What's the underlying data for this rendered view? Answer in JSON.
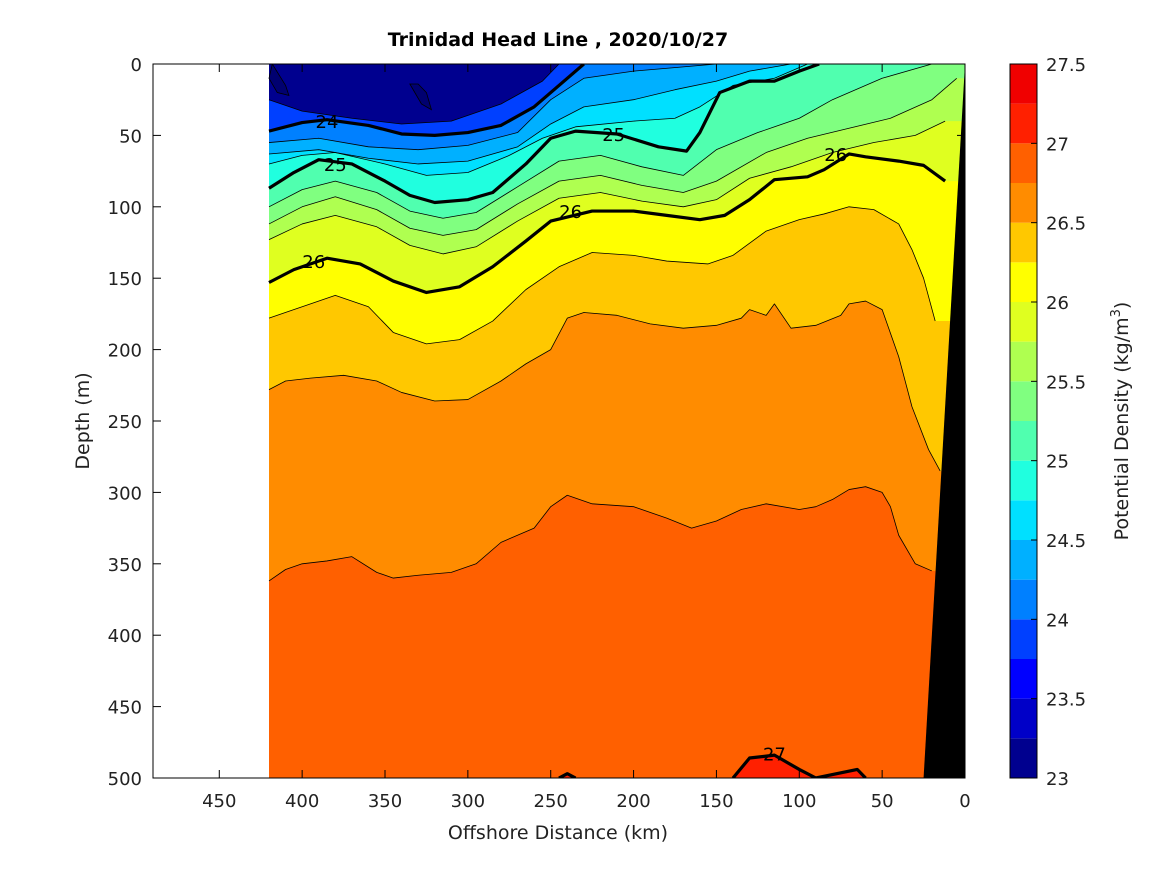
{
  "chart_data": {
    "type": "heatmap",
    "title": "Trinidad Head Line , 2020/10/27",
    "xlabel": "Offshore Distance (km)",
    "ylabel": "Depth (m)",
    "colorbar_label_prefix": "Potential Density (kg/m",
    "colorbar_label_exponent": "3",
    "colorbar_label_suffix": ")",
    "xlim": [
      490,
      0
    ],
    "ylim": [
      500,
      0
    ],
    "x_reversed": true,
    "y_reversed": true,
    "x_ticks": [
      450,
      400,
      350,
      300,
      250,
      200,
      150,
      100,
      50,
      0
    ],
    "x_tick_labels": [
      "450",
      "400",
      "350",
      "300",
      "250",
      "200",
      "150",
      "100",
      "50",
      "0"
    ],
    "y_ticks": [
      0,
      50,
      100,
      150,
      200,
      250,
      300,
      350,
      400,
      450,
      500
    ],
    "y_tick_labels": [
      "0",
      "50",
      "100",
      "150",
      "200",
      "250",
      "300",
      "350",
      "400",
      "450",
      "500"
    ],
    "data_extent_km": [
      420,
      0
    ],
    "color_range": [
      23,
      27.5
    ],
    "color_levels": [
      23,
      23.25,
      23.5,
      23.75,
      24,
      24.25,
      24.5,
      24.75,
      25,
      25.25,
      25.5,
      25.75,
      26,
      26.25,
      26.5,
      26.75,
      27,
      27.25,
      27.5
    ],
    "colorbar_ticks": [
      23,
      23.5,
      24,
      24.5,
      25,
      25.5,
      26,
      26.5,
      27,
      27.5
    ],
    "colorbar_tick_labels": [
      "23",
      "23.5",
      "24",
      "24.5",
      "25",
      "25.5",
      "26",
      "26.5",
      "27",
      "27.5"
    ],
    "colors": [
      "#00008f",
      "#0000c8",
      "#0000ff",
      "#0040ff",
      "#0080ff",
      "#00b0ff",
      "#00e0ff",
      "#20ffdf",
      "#50ffaf",
      "#80ff80",
      "#afff50",
      "#dfff20",
      "#ffff00",
      "#ffc800",
      "#ff8c00",
      "#ff6000",
      "#ff2000",
      "#f00000",
      "#b00000"
    ],
    "bathymetry_color": "#000000",
    "bathymetry": [
      [
        0,
        0
      ],
      [
        25,
        500
      ]
    ],
    "isopycnals": [
      {
        "level": 23.75,
        "points": [
          [
            420,
            25
          ],
          [
            400,
            33
          ],
          [
            370,
            38
          ],
          [
            340,
            42
          ],
          [
            310,
            40
          ],
          [
            280,
            28
          ],
          [
            255,
            12
          ],
          [
            245,
            0
          ]
        ]
      },
      {
        "level": 24,
        "bold": true,
        "label": "24",
        "points": [
          [
            420,
            47
          ],
          [
            400,
            41
          ],
          [
            385,
            39
          ],
          [
            360,
            43
          ],
          [
            340,
            49
          ],
          [
            320,
            50
          ],
          [
            300,
            48
          ],
          [
            280,
            43
          ],
          [
            260,
            30
          ],
          [
            240,
            10
          ],
          [
            230,
            0
          ]
        ]
      },
      {
        "level": 24.25,
        "points": [
          [
            420,
            55
          ],
          [
            390,
            52
          ],
          [
            360,
            58
          ],
          [
            330,
            60
          ],
          [
            300,
            57
          ],
          [
            270,
            48
          ],
          [
            250,
            25
          ],
          [
            230,
            10
          ],
          [
            200,
            5
          ],
          [
            170,
            2
          ],
          [
            150,
            0
          ]
        ]
      },
      {
        "level": 24.5,
        "points": [
          [
            420,
            63
          ],
          [
            390,
            60
          ],
          [
            360,
            66
          ],
          [
            330,
            70
          ],
          [
            300,
            68
          ],
          [
            270,
            58
          ],
          [
            250,
            42
          ],
          [
            230,
            30
          ],
          [
            200,
            25
          ],
          [
            175,
            18
          ],
          [
            150,
            12
          ],
          [
            130,
            5
          ],
          [
            105,
            0
          ]
        ]
      },
      {
        "level": 24.75,
        "points": [
          [
            420,
            70
          ],
          [
            400,
            64
          ],
          [
            380,
            62
          ],
          [
            350,
            70
          ],
          [
            325,
            78
          ],
          [
            300,
            76
          ],
          [
            275,
            64
          ],
          [
            255,
            52
          ],
          [
            235,
            44
          ],
          [
            200,
            40
          ],
          [
            175,
            38
          ],
          [
            160,
            30
          ],
          [
            140,
            15
          ],
          [
            115,
            10
          ],
          [
            95,
            0
          ]
        ]
      },
      {
        "level": 25,
        "bold": true,
        "label": "25",
        "points": [
          [
            420,
            87
          ],
          [
            405,
            76
          ],
          [
            390,
            67
          ],
          [
            370,
            70
          ],
          [
            350,
            82
          ],
          [
            335,
            92
          ],
          [
            320,
            97
          ],
          [
            300,
            95
          ],
          [
            285,
            90
          ],
          [
            265,
            70
          ],
          [
            250,
            52
          ],
          [
            235,
            47
          ],
          [
            210,
            49
          ],
          [
            185,
            58
          ],
          [
            168,
            61
          ],
          [
            160,
            48
          ],
          [
            148,
            20
          ],
          [
            130,
            12
          ],
          [
            115,
            12
          ],
          [
            100,
            5
          ],
          [
            88,
            0
          ]
        ]
      },
      {
        "level": 25.25,
        "points": [
          [
            420,
            100
          ],
          [
            400,
            88
          ],
          [
            380,
            82
          ],
          [
            355,
            90
          ],
          [
            335,
            103
          ],
          [
            315,
            108
          ],
          [
            295,
            104
          ],
          [
            270,
            86
          ],
          [
            245,
            68
          ],
          [
            220,
            64
          ],
          [
            195,
            72
          ],
          [
            170,
            78
          ],
          [
            150,
            60
          ],
          [
            125,
            48
          ],
          [
            100,
            38
          ],
          [
            80,
            25
          ],
          [
            50,
            10
          ],
          [
            20,
            0
          ]
        ]
      },
      {
        "level": 25.5,
        "points": [
          [
            420,
            112
          ],
          [
            400,
            100
          ],
          [
            380,
            93
          ],
          [
            355,
            102
          ],
          [
            335,
            115
          ],
          [
            315,
            120
          ],
          [
            295,
            116
          ],
          [
            270,
            98
          ],
          [
            245,
            82
          ],
          [
            220,
            78
          ],
          [
            195,
            85
          ],
          [
            170,
            90
          ],
          [
            150,
            82
          ],
          [
            120,
            62
          ],
          [
            95,
            52
          ],
          [
            70,
            45
          ],
          [
            45,
            38
          ],
          [
            20,
            25
          ],
          [
            5,
            10
          ]
        ]
      },
      {
        "level": 25.75,
        "points": [
          [
            420,
            123
          ],
          [
            400,
            112
          ],
          [
            380,
            106
          ],
          [
            355,
            114
          ],
          [
            335,
            127
          ],
          [
            315,
            133
          ],
          [
            295,
            128
          ],
          [
            270,
            110
          ],
          [
            245,
            94
          ],
          [
            220,
            90
          ],
          [
            195,
            96
          ],
          [
            170,
            100
          ],
          [
            150,
            95
          ],
          [
            130,
            80
          ],
          [
            105,
            72
          ],
          [
            80,
            62
          ],
          [
            55,
            55
          ],
          [
            30,
            50
          ],
          [
            12,
            40
          ]
        ]
      },
      {
        "level": 26,
        "bold": true,
        "label": "26",
        "points": [
          [
            420,
            153
          ],
          [
            405,
            144
          ],
          [
            385,
            136
          ],
          [
            365,
            140
          ],
          [
            345,
            152
          ],
          [
            325,
            160
          ],
          [
            305,
            156
          ],
          [
            285,
            142
          ],
          [
            265,
            124
          ],
          [
            250,
            110
          ],
          [
            225,
            103
          ],
          [
            200,
            103
          ],
          [
            180,
            106
          ],
          [
            160,
            109
          ],
          [
            145,
            106
          ],
          [
            130,
            95
          ],
          [
            115,
            81
          ],
          [
            95,
            79
          ],
          [
            85,
            74
          ],
          [
            70,
            63
          ],
          [
            60,
            65
          ],
          [
            40,
            68
          ],
          [
            25,
            71
          ],
          [
            12,
            82
          ]
        ]
      },
      {
        "level": 26.25,
        "points": [
          [
            420,
            178
          ],
          [
            400,
            170
          ],
          [
            380,
            162
          ],
          [
            360,
            170
          ],
          [
            345,
            188
          ],
          [
            325,
            196
          ],
          [
            305,
            193
          ],
          [
            285,
            180
          ],
          [
            265,
            158
          ],
          [
            245,
            142
          ],
          [
            225,
            132
          ],
          [
            200,
            134
          ],
          [
            180,
            138
          ],
          [
            155,
            140
          ],
          [
            140,
            134
          ],
          [
            120,
            117
          ],
          [
            100,
            109
          ],
          [
            85,
            105
          ],
          [
            70,
            100
          ],
          [
            55,
            102
          ],
          [
            40,
            112
          ],
          [
            32,
            130
          ],
          [
            25,
            150
          ],
          [
            18,
            180
          ]
        ]
      },
      {
        "level": 26.5,
        "points": [
          [
            420,
            228
          ],
          [
            410,
            222
          ],
          [
            395,
            220
          ],
          [
            375,
            218
          ],
          [
            355,
            222
          ],
          [
            340,
            230
          ],
          [
            320,
            236
          ],
          [
            300,
            235
          ],
          [
            280,
            222
          ],
          [
            265,
            210
          ],
          [
            250,
            200
          ],
          [
            240,
            178
          ],
          [
            230,
            174
          ],
          [
            210,
            176
          ],
          [
            190,
            182
          ],
          [
            170,
            185
          ],
          [
            150,
            183
          ],
          [
            135,
            178
          ],
          [
            130,
            172
          ],
          [
            120,
            176
          ],
          [
            115,
            168
          ],
          [
            105,
            185
          ],
          [
            90,
            183
          ],
          [
            75,
            176
          ],
          [
            70,
            168
          ],
          [
            60,
            166
          ],
          [
            50,
            172
          ],
          [
            40,
            205
          ],
          [
            32,
            240
          ],
          [
            22,
            270
          ],
          [
            15,
            285
          ]
        ]
      },
      {
        "level": 26.75,
        "points": [
          [
            420,
            362
          ],
          [
            410,
            354
          ],
          [
            400,
            350
          ],
          [
            385,
            348
          ],
          [
            370,
            345
          ],
          [
            355,
            356
          ],
          [
            345,
            360
          ],
          [
            330,
            358
          ],
          [
            310,
            356
          ],
          [
            295,
            350
          ],
          [
            280,
            335
          ],
          [
            260,
            325
          ],
          [
            250,
            310
          ],
          [
            240,
            302
          ],
          [
            225,
            308
          ],
          [
            200,
            310
          ],
          [
            180,
            318
          ],
          [
            165,
            325
          ],
          [
            150,
            320
          ],
          [
            135,
            312
          ],
          [
            120,
            308
          ],
          [
            100,
            312
          ],
          [
            90,
            310
          ],
          [
            80,
            305
          ],
          [
            70,
            298
          ],
          [
            60,
            296
          ],
          [
            50,
            300
          ],
          [
            45,
            310
          ],
          [
            40,
            330
          ],
          [
            30,
            350
          ],
          [
            20,
            355
          ]
        ]
      },
      {
        "level": 27,
        "bold": true,
        "label": "27",
        "points": [
          [
            140,
            500
          ],
          [
            130,
            486
          ],
          [
            115,
            484
          ],
          [
            100,
            494
          ],
          [
            90,
            500
          ],
          [
            65,
            494
          ],
          [
            60,
            500
          ]
        ]
      },
      {
        "level": 27,
        "bold": true,
        "points": [
          [
            245,
            500
          ],
          [
            240,
            497
          ],
          [
            235,
            500
          ]
        ]
      }
    ],
    "isopycnal_labels": [
      {
        "text": "24",
        "x": 385,
        "y": 40
      },
      {
        "text": "25",
        "x": 380,
        "y": 70
      },
      {
        "text": "26",
        "x": 393,
        "y": 138
      },
      {
        "text": "25",
        "x": 212,
        "y": 49
      },
      {
        "text": "26",
        "x": 238,
        "y": 103
      },
      {
        "text": "26",
        "x": 78,
        "y": 63
      },
      {
        "text": "27",
        "x": 115,
        "y": 483
      }
    ]
  }
}
